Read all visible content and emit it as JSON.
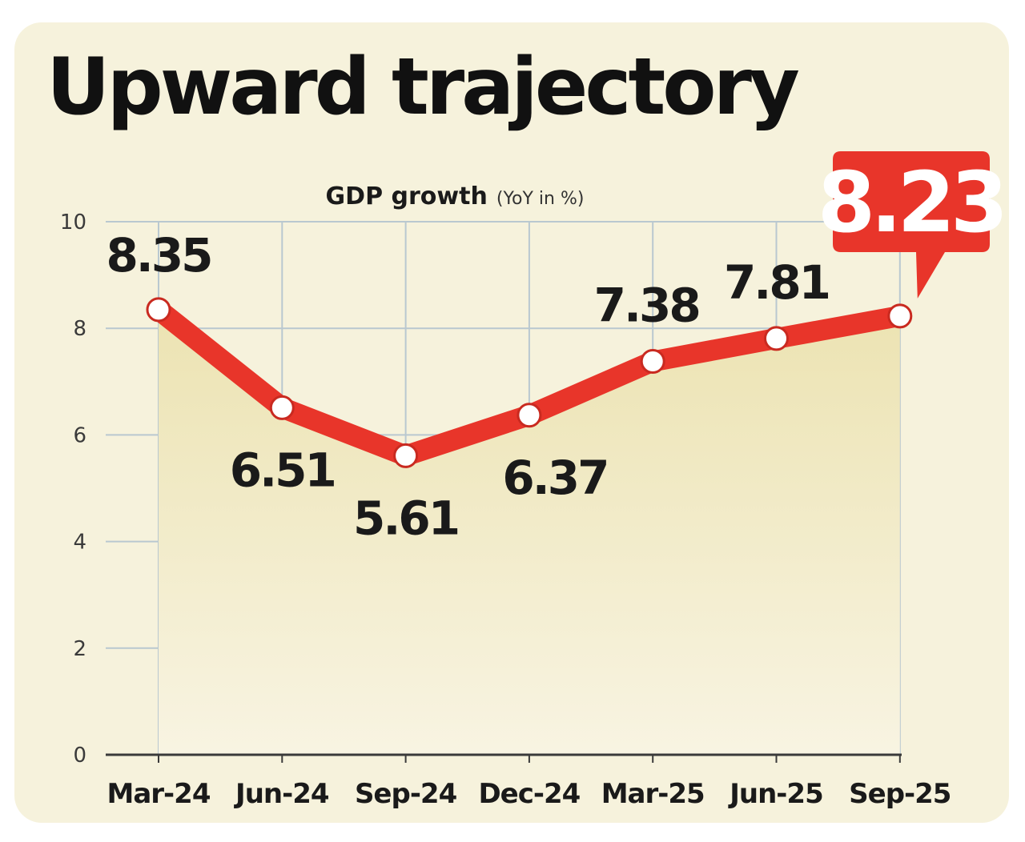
{
  "title": "Upward trajectory",
  "chart_data": {
    "type": "line",
    "subtitle_main": "GDP growth",
    "subtitle_unit": "(YoY in %)",
    "categories": [
      "Mar-24",
      "Jun-24",
      "Sep-24",
      "Dec-24",
      "Mar-25",
      "Jun-25",
      "Sep-25"
    ],
    "series": [
      {
        "name": "GDP growth (YoY in %)",
        "values": [
          8.35,
          6.51,
          5.61,
          6.37,
          7.38,
          7.81,
          8.23
        ]
      }
    ],
    "value_labels": [
      "8.35",
      "6.51",
      "5.61",
      "6.37",
      "7.38",
      "7.81",
      "8.23"
    ],
    "highlight_index": 6,
    "ylim": [
      0,
      10
    ],
    "y_ticks": [
      0,
      2,
      4,
      6,
      8,
      10
    ],
    "grid": true,
    "colors": {
      "background": "#f6f2dc",
      "line": "#e8352a",
      "grid": "#b9c8d0",
      "axis": "#3a3a3a",
      "fill_top": "#ece3b2",
      "fill_bottom": "#f8f4e2",
      "text": "#1a1a1a"
    }
  }
}
